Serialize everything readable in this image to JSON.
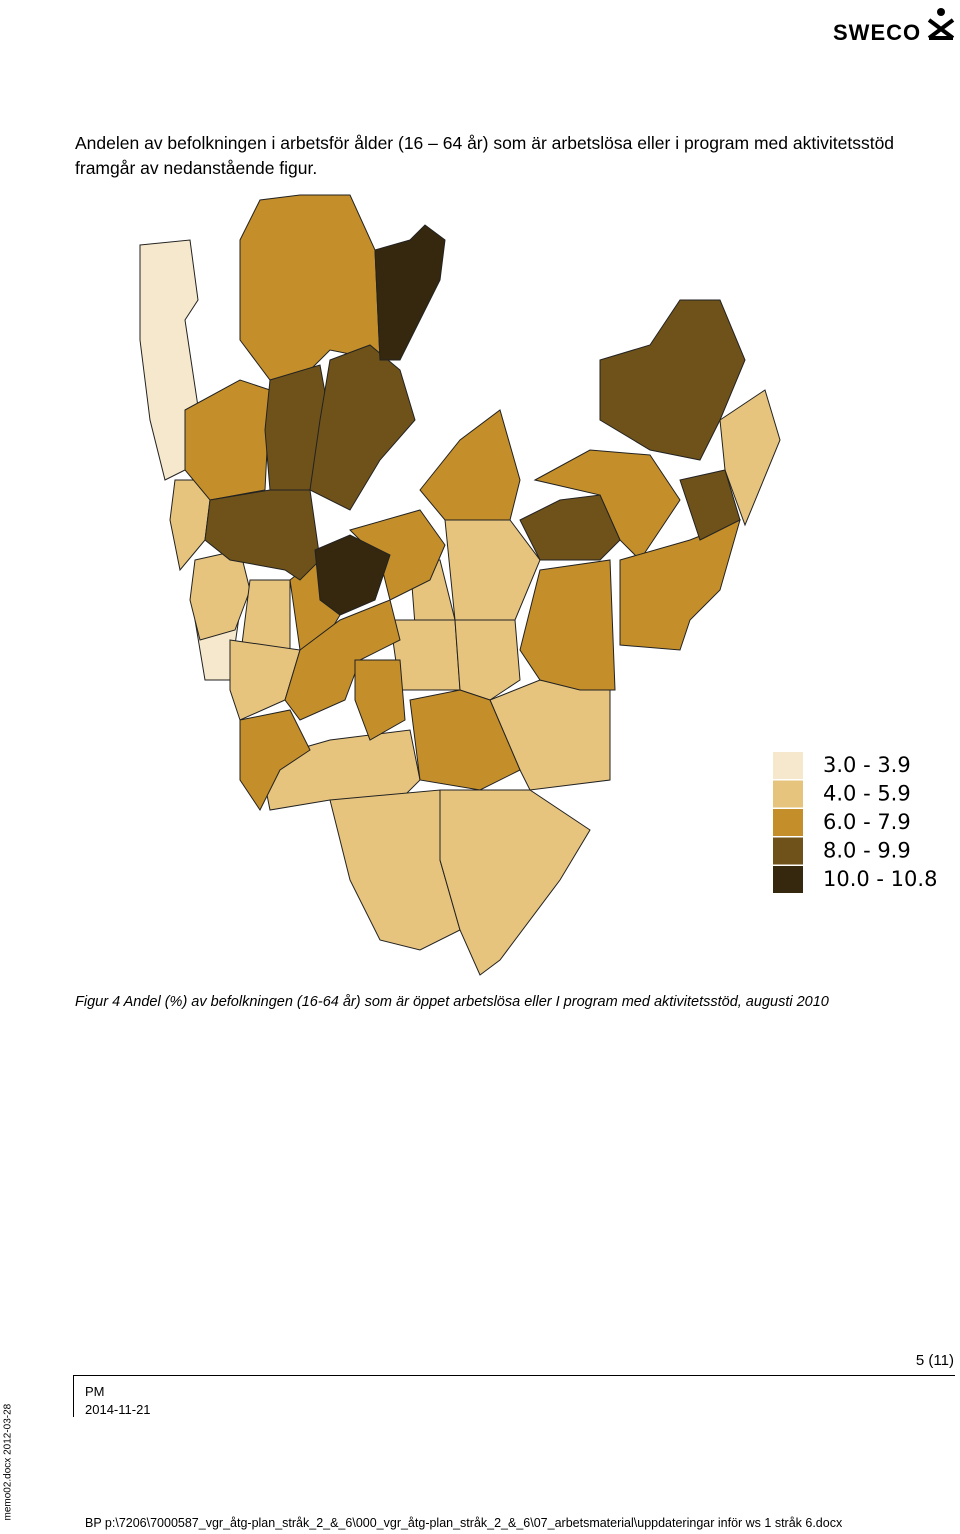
{
  "header": {
    "logo": "SWECO"
  },
  "body": {
    "paragraph": "Andelen av befolkningen i arbetsför ålder (16 – 64 år) som är arbetslösa eller i program med aktivitetsstöd framgår av nedanstående figur."
  },
  "figure": {
    "legend": [
      {
        "label": "3.0 - 3.9",
        "color": "#f6e8cc"
      },
      {
        "label": "4.0 - 5.9",
        "color": "#e6c47e"
      },
      {
        "label": "6.0 - 7.9",
        "color": "#c48f2a"
      },
      {
        "label": "8.0 - 9.9",
        "color": "#6f521a"
      },
      {
        "label": "10.0 - 10.8",
        "color": "#35280e"
      }
    ],
    "caption": "Figur 4 Andel (%) av befolkningen (16-64 år) som är öppet arbetslösa eller I program med aktivitetsstöd, augusti 2010"
  },
  "footer": {
    "page": "5 (11)",
    "doc_type": "PM",
    "date": "2014-11-21",
    "template": "memo02.docx 2012-03-28",
    "path": "BP p:\\7206\\7000587_vgr_åtg-plan_stråk_2_&_6\\000_vgr_åtg-plan_stråk_2_&_6\\07_arbetsmaterial\\uppdateringar inför ws 1 stråk 6.docx"
  }
}
